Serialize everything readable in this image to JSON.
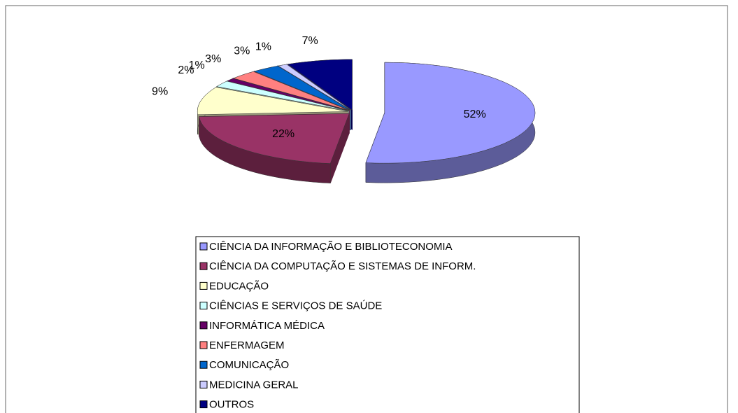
{
  "chart_data": {
    "type": "pie3d",
    "categories": [
      "CIÊNCIA DA INFORMAÇÃO E BIBLIOTECONOMIA",
      "CIÊNCIA DA COMPUTAÇÃO E SISTEMAS DE INFORM.",
      "EDUCAÇÃO",
      "CIÊNCIAS E SERVIÇOS DE SAÚDE",
      "INFORMÁTICA MÉDICA",
      "ENFERMAGEM",
      "COMUNICAÇÃO",
      "MEDICINA GERAL",
      "OUTROS"
    ],
    "values": [
      52,
      22,
      9,
      2,
      1,
      3,
      3,
      1,
      7
    ],
    "value_labels": [
      "52%",
      "22%",
      "9%",
      "2%",
      "1%",
      "3%",
      "3%",
      "1%",
      "7%"
    ],
    "colors": [
      "#9999ff",
      "#993366",
      "#ffffcc",
      "#ccffff",
      "#660066",
      "#ff8080",
      "#0066cc",
      "#ccccff",
      "#000080"
    ],
    "legend": "bottom"
  }
}
